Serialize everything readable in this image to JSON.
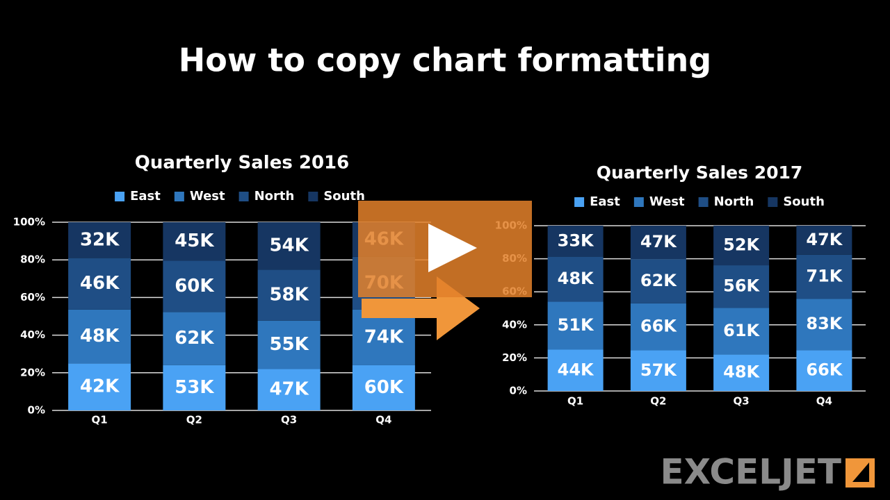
{
  "title": "How to copy chart formatting",
  "logo": "EXCELJET",
  "chart_data": [
    {
      "type": "bar",
      "stacked": "percent",
      "title": "Quarterly Sales 2016",
      "categories": [
        "Q1",
        "Q2",
        "Q3",
        "Q4"
      ],
      "series": [
        {
          "name": "East",
          "color": "#4aa2f4",
          "values": [
            42000,
            53000,
            47000,
            60000
          ],
          "value_labels": [
            "42K",
            "53K",
            "47K",
            "60K"
          ]
        },
        {
          "name": "West",
          "color": "#2f77bd",
          "values": [
            48000,
            62000,
            55000,
            74000
          ],
          "value_labels": [
            "48K",
            "62K",
            "55K",
            "74K"
          ]
        },
        {
          "name": "North",
          "color": "#1f4e85",
          "values": [
            46000,
            60000,
            58000,
            70000
          ],
          "value_labels": [
            "46K",
            "60K",
            "58K",
            "70K"
          ]
        },
        {
          "name": "South",
          "color": "#163662",
          "values": [
            32000,
            45000,
            54000,
            46000
          ],
          "value_labels": [
            "32K",
            "45K",
            "54K",
            "46K"
          ]
        }
      ],
      "ylim": [
        0,
        100
      ],
      "yticks": [
        {
          "value": 0,
          "label": "0%"
        },
        {
          "value": 20,
          "label": "20%"
        },
        {
          "value": 40,
          "label": "40%"
        },
        {
          "value": 60,
          "label": "60%"
        },
        {
          "value": 80,
          "label": "80%"
        },
        {
          "value": 100,
          "label": "100%"
        }
      ],
      "grid": true,
      "legend": "top"
    },
    {
      "type": "bar",
      "stacked": "percent",
      "title": "Quarterly Sales 2017",
      "categories": [
        "Q1",
        "Q2",
        "Q3",
        "Q4"
      ],
      "series": [
        {
          "name": "East",
          "color": "#4aa2f4",
          "values": [
            44000,
            57000,
            48000,
            66000
          ],
          "value_labels": [
            "44K",
            "57K",
            "48K",
            "66K"
          ]
        },
        {
          "name": "West",
          "color": "#2f77bd",
          "values": [
            51000,
            66000,
            61000,
            83000
          ],
          "value_labels": [
            "51K",
            "66K",
            "61K",
            "83K"
          ]
        },
        {
          "name": "North",
          "color": "#1f4e85",
          "values": [
            48000,
            62000,
            56000,
            71000
          ],
          "value_labels": [
            "48K",
            "62K",
            "56K",
            "71K"
          ]
        },
        {
          "name": "South",
          "color": "#163662",
          "values": [
            33000,
            47000,
            52000,
            47000
          ],
          "value_labels": [
            "33K",
            "47K",
            "52K",
            "47K"
          ]
        }
      ],
      "ylim": [
        0,
        100
      ],
      "yticks": [
        {
          "value": 0,
          "label": "0%"
        },
        {
          "value": 20,
          "label": "20%"
        },
        {
          "value": 40,
          "label": "40%"
        },
        {
          "value": 60,
          "label": "60%"
        },
        {
          "value": 80,
          "label": "80%"
        },
        {
          "value": 100,
          "label": "100%"
        }
      ],
      "grid": true,
      "legend": "top"
    }
  ]
}
